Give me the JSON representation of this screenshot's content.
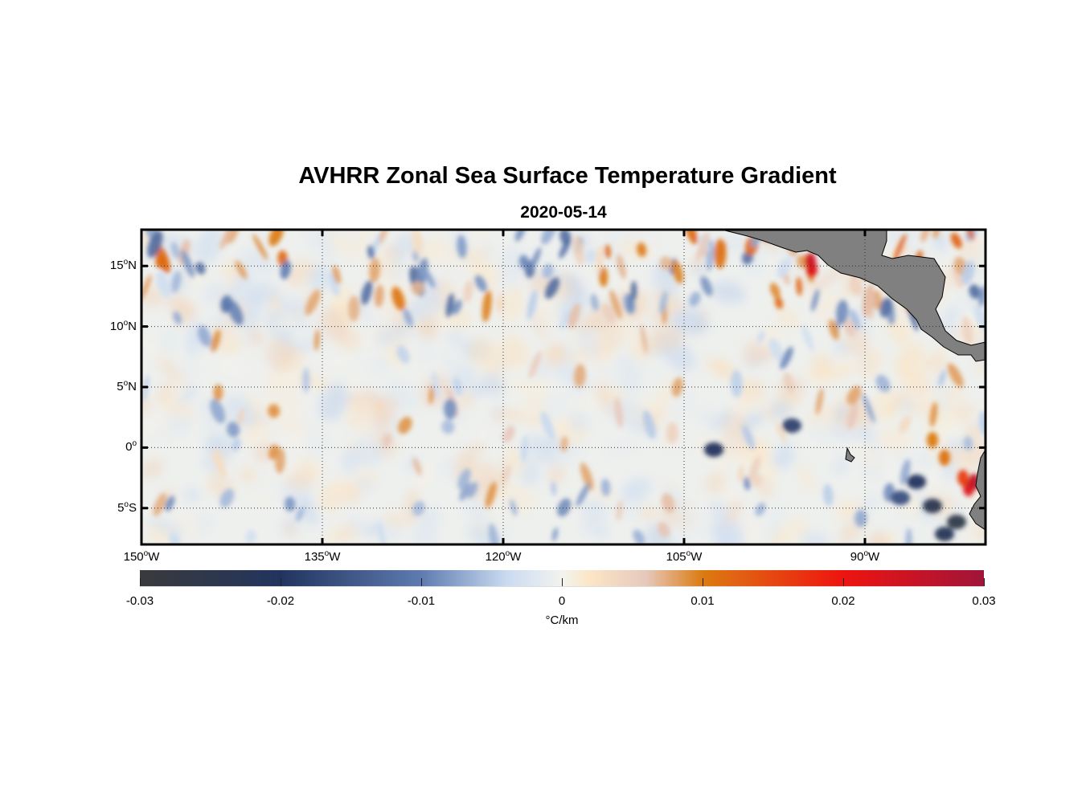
{
  "title": "AVHRR Zonal Sea Surface Temperature Gradient",
  "subtitle": "2020-05-14",
  "map": {
    "lon_range": [
      -150,
      -80
    ],
    "lat_range": [
      -8,
      18
    ],
    "land_color": "#808080",
    "lat_ticks": [
      {
        "value": 15,
        "num": "15",
        "hemi": "N"
      },
      {
        "value": 10,
        "num": "10",
        "hemi": "N"
      },
      {
        "value": 5,
        "num": "5",
        "hemi": "N"
      },
      {
        "value": 0,
        "num": "0",
        "hemi": ""
      },
      {
        "value": -5,
        "num": "5",
        "hemi": "S"
      }
    ],
    "lon_ticks": [
      {
        "value": -150,
        "num": "150",
        "hemi": "W"
      },
      {
        "value": -135,
        "num": "135",
        "hemi": "W"
      },
      {
        "value": -120,
        "num": "120",
        "hemi": "W"
      },
      {
        "value": -105,
        "num": "105",
        "hemi": "W"
      },
      {
        "value": -90,
        "num": "90",
        "hemi": "W"
      }
    ]
  },
  "colorbar": {
    "range": [
      -0.03,
      0.03
    ],
    "ticks": [
      "-0.03",
      "-0.02",
      "-0.01",
      "0",
      "0.01",
      "0.02",
      "0.03"
    ],
    "unit": "°C/km",
    "stops": [
      {
        "v": -0.03,
        "c": "#3a3a3c"
      },
      {
        "v": -0.02,
        "c": "#22345e"
      },
      {
        "v": -0.01,
        "c": "#5e7bb0"
      },
      {
        "v": -0.004,
        "c": "#c9daf0"
      },
      {
        "v": 0,
        "c": "#f3f3ef"
      },
      {
        "v": 0.002,
        "c": "#fbe6c6"
      },
      {
        "v": 0.006,
        "c": "#e6c8bc"
      },
      {
        "v": 0.01,
        "c": "#dc7b12"
      },
      {
        "v": 0.02,
        "c": "#ee1410"
      },
      {
        "v": 0.03,
        "c": "#a0143a"
      }
    ]
  }
}
